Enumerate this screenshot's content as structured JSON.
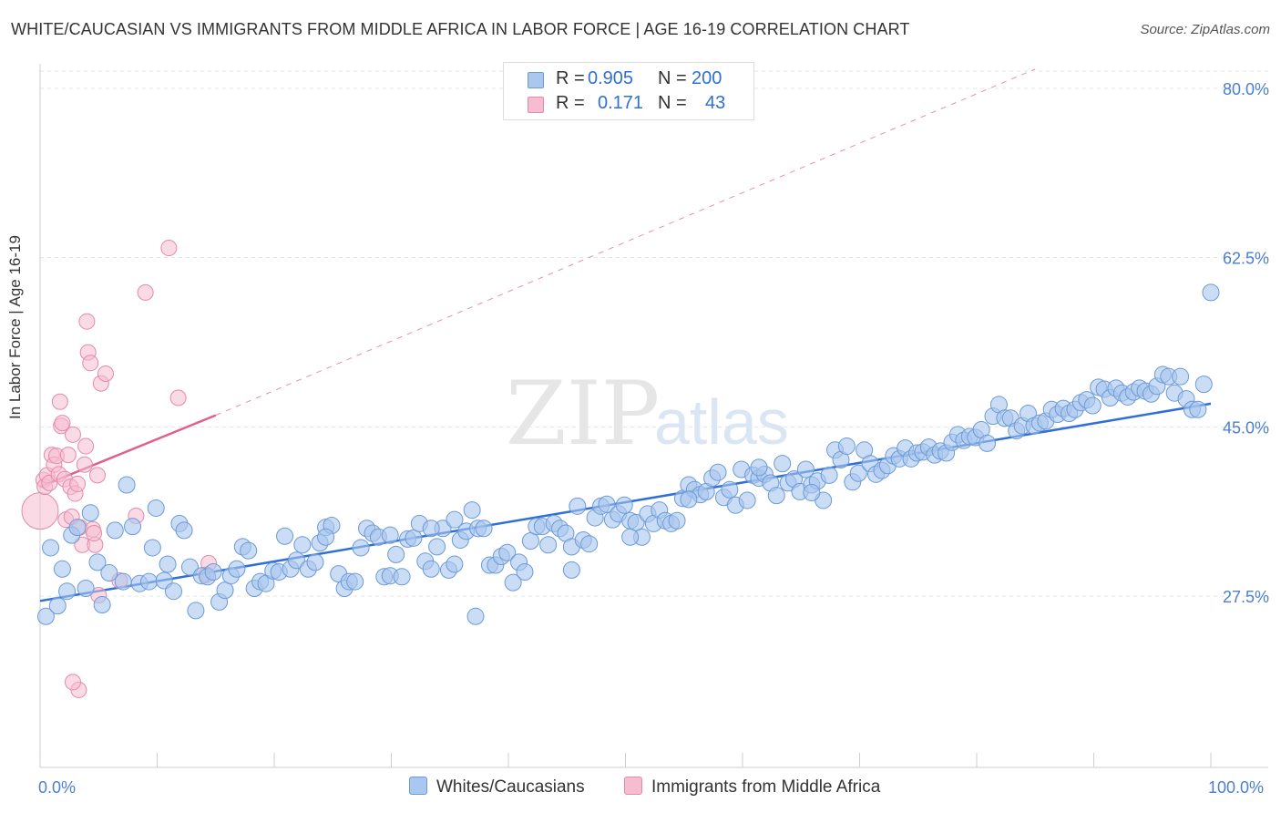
{
  "title": "WHITE/CAUCASIAN VS IMMIGRANTS FROM MIDDLE AFRICA IN LABOR FORCE | AGE 16-19 CORRELATION CHART",
  "source": "Source: ZipAtlas.com",
  "watermark": {
    "zip": "ZIP",
    "atlas": "atlas"
  },
  "legend": {
    "rows": [
      {
        "r_label": "R =",
        "r_value": "0.905",
        "n_label": "N =",
        "n_value": "200",
        "color": "#a9c7ef",
        "border": "#6b9ad8"
      },
      {
        "r_label": "R =",
        "r_value": "0.171",
        "n_label": "N =",
        "n_value": "43",
        "color": "#f6bccf",
        "border": "#e48aa8"
      }
    ]
  },
  "bottom_legend": [
    {
      "label": "Whites/Caucasians",
      "color": "#a9c7ef",
      "border": "#6b9ad8"
    },
    {
      "label": "Immigrants from Middle Africa",
      "color": "#f6bccf",
      "border": "#e48aa8"
    }
  ],
  "chart_data": {
    "type": "scatter",
    "title": "WHITE/CAUCASIAN VS IMMIGRANTS FROM MIDDLE AFRICA IN LABOR FORCE | AGE 16-19 CORRELATION CHART",
    "xlabel": "",
    "ylabel": "In Labor Force | Age 16-19",
    "xlim": [
      0,
      100
    ],
    "ylim": [
      10.5,
      82
    ],
    "x_ticks": [
      "0.0%",
      "100.0%"
    ],
    "y_ticks": [
      {
        "value": 27.5,
        "label": "27.5%"
      },
      {
        "value": 45.0,
        "label": "45.0%"
      },
      {
        "value": 62.5,
        "label": "62.5%"
      },
      {
        "value": 80.0,
        "label": "80.0%"
      }
    ],
    "grid": true,
    "legend_position": "top-center",
    "series": [
      {
        "name": "Whites/Caucasians",
        "color": "#a9c7ef",
        "stroke": "#6b9ad8",
        "trend": {
          "x": [
            0,
            100
          ],
          "y": [
            27.0,
            47.4
          ],
          "color": "#2e6fd8"
        },
        "points": [
          [
            0.5,
            25.4
          ],
          [
            0.9,
            32.5
          ],
          [
            1.9,
            30.3
          ],
          [
            2.3,
            28.0
          ],
          [
            1.5,
            26.5
          ],
          [
            2.7,
            33.8
          ],
          [
            3.2,
            34.6
          ],
          [
            3.9,
            28.3
          ],
          [
            4.3,
            36.1
          ],
          [
            4.9,
            31.0
          ],
          [
            5.3,
            26.6
          ],
          [
            5.9,
            29.9
          ],
          [
            6.4,
            34.3
          ],
          [
            7.1,
            29.0
          ],
          [
            7.4,
            39.0
          ],
          [
            7.9,
            34.7
          ],
          [
            8.5,
            28.8
          ],
          [
            9.3,
            29.0
          ],
          [
            9.6,
            32.5
          ],
          [
            9.9,
            36.6
          ],
          [
            10.6,
            29.1
          ],
          [
            10.9,
            30.8
          ],
          [
            11.4,
            28.0
          ],
          [
            11.9,
            35.0
          ],
          [
            12.3,
            34.3
          ],
          [
            12.8,
            30.5
          ],
          [
            13.3,
            26.0
          ],
          [
            13.8,
            29.6
          ],
          [
            14.3,
            29.5
          ],
          [
            14.8,
            30.0
          ],
          [
            15.3,
            26.9
          ],
          [
            15.8,
            28.1
          ],
          [
            16.3,
            29.6
          ],
          [
            16.8,
            30.3
          ],
          [
            17.3,
            32.6
          ],
          [
            17.8,
            32.2
          ],
          [
            18.3,
            28.3
          ],
          [
            18.8,
            29.0
          ],
          [
            19.3,
            28.8
          ],
          [
            19.9,
            30.1
          ],
          [
            20.4,
            30.0
          ],
          [
            20.9,
            33.7
          ],
          [
            21.4,
            30.3
          ],
          [
            21.9,
            31.2
          ],
          [
            22.4,
            32.8
          ],
          [
            22.9,
            30.3
          ],
          [
            23.5,
            31.0
          ],
          [
            23.9,
            33.0
          ],
          [
            24.4,
            34.6
          ],
          [
            24.9,
            34.8
          ],
          [
            25.5,
            29.8
          ],
          [
            26.0,
            28.3
          ],
          [
            26.4,
            29.0
          ],
          [
            26.9,
            29.0
          ],
          [
            27.4,
            32.5
          ],
          [
            27.9,
            34.5
          ],
          [
            28.4,
            34.0
          ],
          [
            28.9,
            33.6
          ],
          [
            29.4,
            29.5
          ],
          [
            29.9,
            29.6
          ],
          [
            30.4,
            31.8
          ],
          [
            30.9,
            29.5
          ],
          [
            31.4,
            33.4
          ],
          [
            31.9,
            33.5
          ],
          [
            32.4,
            35.0
          ],
          [
            32.9,
            31.1
          ],
          [
            33.4,
            30.3
          ],
          [
            33.9,
            32.6
          ],
          [
            34.4,
            34.5
          ],
          [
            34.9,
            30.2
          ],
          [
            35.4,
            35.4
          ],
          [
            35.9,
            33.3
          ],
          [
            36.4,
            34.2
          ],
          [
            36.9,
            36.4
          ],
          [
            37.4,
            34.5
          ],
          [
            37.9,
            34.5
          ],
          [
            38.4,
            30.7
          ],
          [
            38.9,
            30.7
          ],
          [
            39.4,
            31.6
          ],
          [
            39.9,
            32.0
          ],
          [
            40.4,
            28.9
          ],
          [
            40.9,
            31.0
          ],
          [
            41.4,
            30.0
          ],
          [
            41.9,
            33.2
          ],
          [
            42.4,
            34.7
          ],
          [
            42.9,
            34.7
          ],
          [
            43.4,
            32.8
          ],
          [
            43.9,
            35.0
          ],
          [
            44.4,
            34.5
          ],
          [
            44.9,
            34.0
          ],
          [
            45.4,
            32.6
          ],
          [
            45.9,
            36.8
          ],
          [
            46.4,
            33.3
          ],
          [
            46.9,
            32.9
          ],
          [
            47.4,
            35.6
          ],
          [
            47.9,
            36.8
          ],
          [
            48.4,
            37.0
          ],
          [
            48.9,
            35.4
          ],
          [
            49.4,
            36.0
          ],
          [
            49.9,
            36.9
          ],
          [
            50.4,
            35.3
          ],
          [
            50.9,
            35.1
          ],
          [
            51.4,
            33.6
          ],
          [
            51.9,
            36.0
          ],
          [
            52.4,
            35.0
          ],
          [
            52.9,
            36.4
          ],
          [
            53.4,
            35.3
          ],
          [
            53.9,
            35.0
          ],
          [
            54.4,
            35.3
          ],
          [
            54.9,
            37.6
          ],
          [
            55.4,
            39.0
          ],
          [
            55.9,
            38.5
          ],
          [
            56.4,
            38.0
          ],
          [
            56.9,
            38.3
          ],
          [
            57.4,
            39.7
          ],
          [
            57.9,
            40.3
          ],
          [
            58.4,
            37.7
          ],
          [
            58.9,
            38.5
          ],
          [
            59.4,
            36.9
          ],
          [
            59.9,
            40.6
          ],
          [
            60.4,
            37.4
          ],
          [
            60.9,
            40.0
          ],
          [
            61.4,
            39.7
          ],
          [
            61.9,
            40.1
          ],
          [
            62.4,
            39.2
          ],
          [
            62.9,
            37.9
          ],
          [
            63.4,
            41.2
          ],
          [
            63.9,
            39.2
          ],
          [
            64.4,
            39.6
          ],
          [
            64.9,
            38.3
          ],
          [
            65.4,
            40.6
          ],
          [
            65.9,
            39.0
          ],
          [
            66.4,
            39.4
          ],
          [
            66.9,
            37.4
          ],
          [
            67.4,
            40.0
          ],
          [
            67.9,
            42.6
          ],
          [
            68.4,
            41.6
          ],
          [
            68.9,
            43.0
          ],
          [
            69.4,
            39.3
          ],
          [
            69.9,
            40.2
          ],
          [
            70.4,
            42.6
          ],
          [
            70.9,
            41.2
          ],
          [
            71.4,
            40.1
          ],
          [
            71.9,
            40.5
          ],
          [
            72.4,
            41.0
          ],
          [
            72.9,
            42.0
          ],
          [
            73.4,
            41.7
          ],
          [
            73.9,
            42.8
          ],
          [
            74.4,
            41.7
          ],
          [
            74.9,
            42.3
          ],
          [
            75.4,
            42.4
          ],
          [
            75.9,
            42.9
          ],
          [
            76.4,
            42.1
          ],
          [
            76.9,
            42.5
          ],
          [
            77.4,
            42.3
          ],
          [
            77.9,
            43.4
          ],
          [
            78.4,
            44.2
          ],
          [
            78.9,
            43.6
          ],
          [
            79.4,
            44.0
          ],
          [
            79.9,
            43.9
          ],
          [
            80.4,
            44.7
          ],
          [
            80.9,
            43.3
          ],
          [
            81.4,
            46.1
          ],
          [
            81.9,
            47.3
          ],
          [
            82.4,
            45.9
          ],
          [
            82.9,
            45.9
          ],
          [
            83.4,
            44.6
          ],
          [
            83.9,
            45.1
          ],
          [
            84.4,
            46.4
          ],
          [
            84.9,
            45.1
          ],
          [
            85.4,
            45.4
          ],
          [
            85.9,
            45.6
          ],
          [
            86.4,
            46.8
          ],
          [
            86.9,
            46.3
          ],
          [
            87.4,
            46.9
          ],
          [
            87.9,
            46.4
          ],
          [
            88.4,
            46.8
          ],
          [
            88.9,
            47.5
          ],
          [
            89.4,
            47.8
          ],
          [
            89.9,
            47.2
          ],
          [
            90.4,
            49.1
          ],
          [
            90.9,
            48.9
          ],
          [
            91.4,
            48.0
          ],
          [
            91.9,
            49.0
          ],
          [
            92.4,
            48.5
          ],
          [
            92.9,
            48.1
          ],
          [
            93.4,
            48.6
          ],
          [
            93.9,
            49.0
          ],
          [
            94.4,
            48.7
          ],
          [
            94.9,
            48.4
          ],
          [
            95.4,
            49.2
          ],
          [
            95.9,
            50.4
          ],
          [
            96.4,
            50.2
          ],
          [
            96.9,
            48.5
          ],
          [
            97.4,
            50.2
          ],
          [
            97.9,
            47.9
          ],
          [
            98.4,
            46.8
          ],
          [
            98.9,
            46.8
          ],
          [
            99.4,
            49.4
          ],
          [
            100.0,
            58.9
          ],
          [
            37.2,
            25.4
          ],
          [
            29.9,
            33.8
          ],
          [
            61.4,
            40.8
          ],
          [
            33.4,
            34.5
          ],
          [
            24.4,
            33.6
          ],
          [
            45.4,
            30.2
          ],
          [
            35.4,
            30.8
          ],
          [
            50.4,
            33.6
          ],
          [
            55.4,
            37.5
          ],
          [
            65.9,
            38.2
          ]
        ]
      },
      {
        "name": "Immigrants from Middle Africa",
        "color": "#f6bccf",
        "stroke": "#e48aa8",
        "trend": {
          "x": [
            0,
            15
          ],
          "y": [
            38.8,
            46.2
          ],
          "dashed_to": [
            85,
            82.0
          ],
          "color": "#e0608a"
        },
        "points": [
          [
            0.0,
            36.3
          ],
          [
            0.3,
            39.5
          ],
          [
            0.4,
            38.8
          ],
          [
            0.6,
            40.0
          ],
          [
            0.8,
            39.2
          ],
          [
            1.0,
            42.1
          ],
          [
            1.2,
            41.1
          ],
          [
            1.4,
            42.0
          ],
          [
            1.6,
            40.1
          ],
          [
            1.7,
            47.6
          ],
          [
            1.8,
            45.1
          ],
          [
            1.9,
            45.4
          ],
          [
            2.1,
            39.6
          ],
          [
            2.2,
            35.4
          ],
          [
            2.4,
            42.1
          ],
          [
            2.6,
            38.8
          ],
          [
            2.7,
            35.7
          ],
          [
            2.8,
            44.2
          ],
          [
            3.0,
            38.1
          ],
          [
            3.2,
            39.1
          ],
          [
            3.4,
            34.6
          ],
          [
            3.6,
            32.8
          ],
          [
            3.8,
            41.1
          ],
          [
            3.9,
            43.0
          ],
          [
            4.0,
            55.9
          ],
          [
            4.1,
            52.7
          ],
          [
            4.3,
            51.6
          ],
          [
            4.5,
            34.4
          ],
          [
            4.7,
            32.8
          ],
          [
            4.9,
            40.0
          ],
          [
            5.2,
            49.5
          ],
          [
            5.6,
            50.5
          ],
          [
            3.3,
            17.8
          ],
          [
            2.8,
            18.6
          ],
          [
            5.0,
            27.6
          ],
          [
            6.8,
            29.1
          ],
          [
            8.2,
            35.8
          ],
          [
            9.0,
            58.9
          ],
          [
            11.0,
            63.5
          ],
          [
            11.8,
            48.0
          ],
          [
            14.4,
            30.9
          ],
          [
            14.2,
            29.7
          ],
          [
            4.6,
            34.0
          ]
        ]
      }
    ]
  }
}
